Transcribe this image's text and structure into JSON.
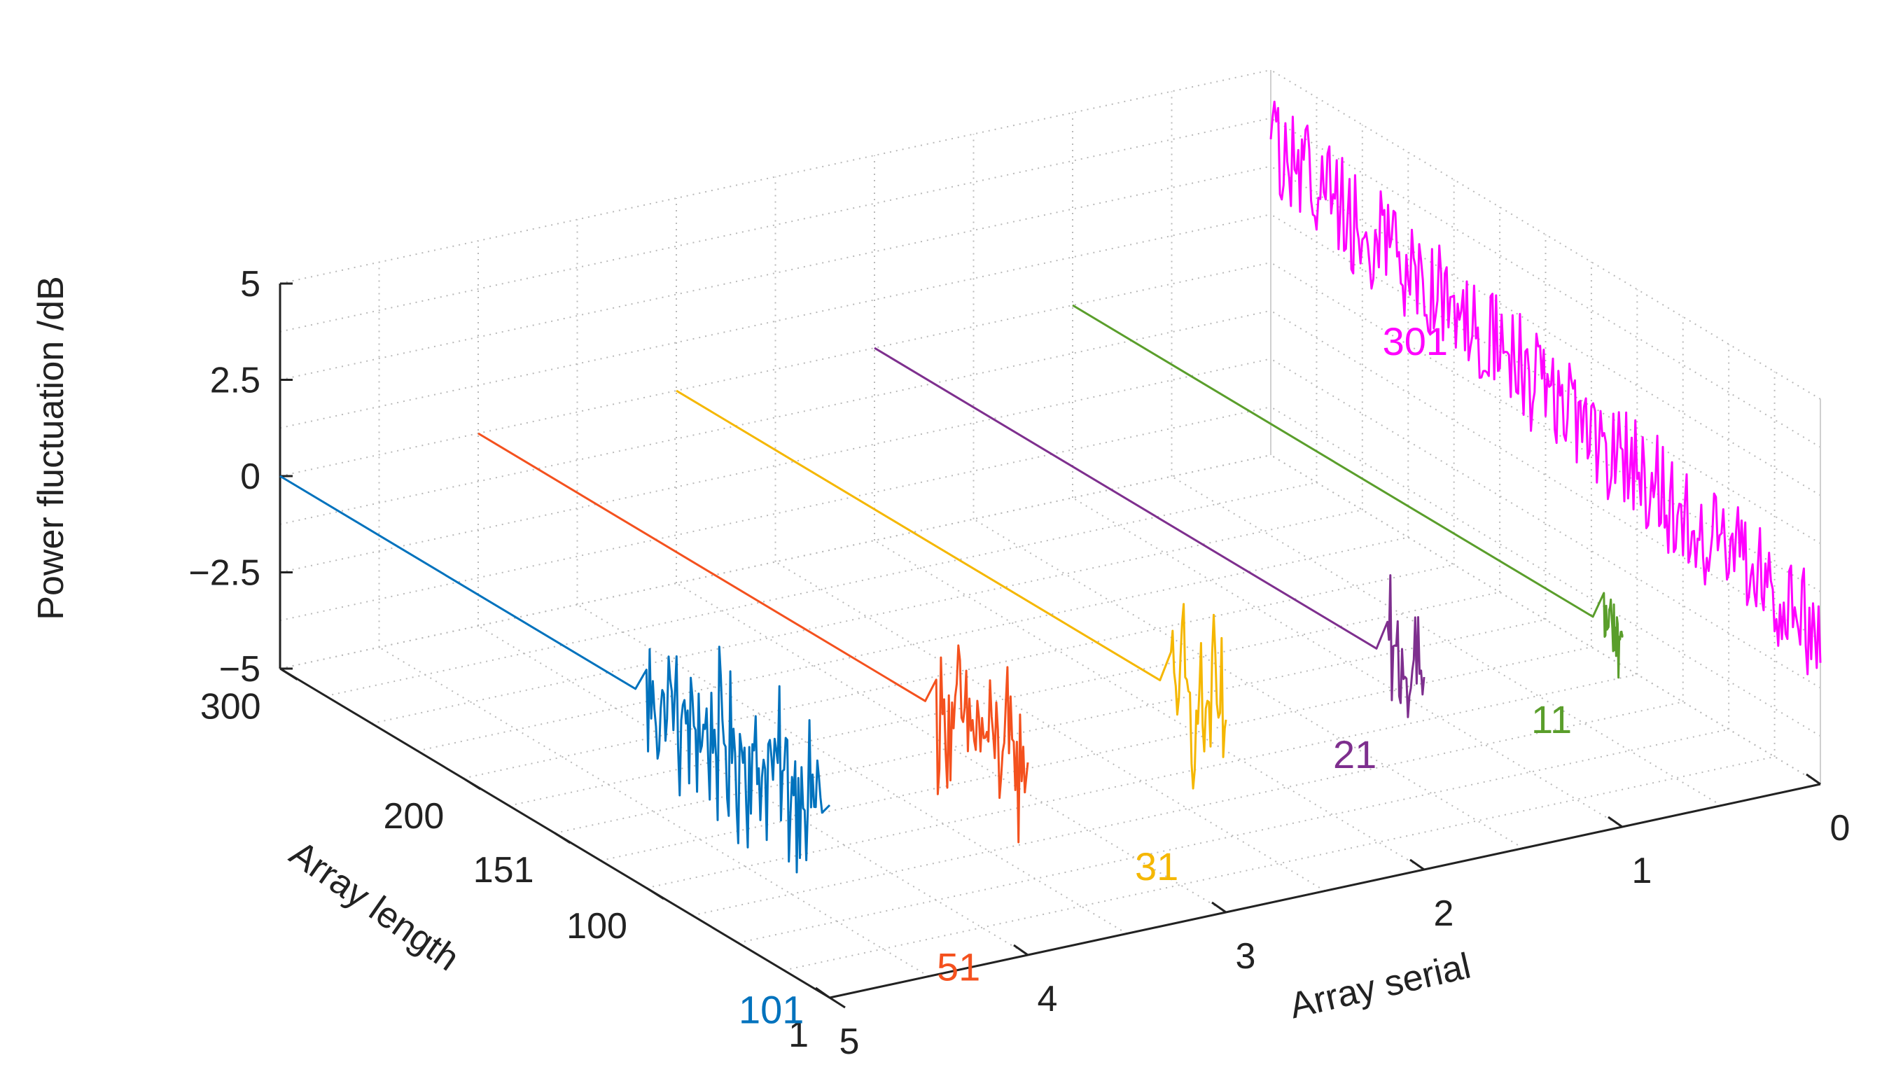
{
  "chart_data": {
    "type": "line",
    "projection": "3d",
    "title": "",
    "zlabel": "Power fluctuation /dB",
    "ylabel": "Array length",
    "xlabel": "Array serial",
    "zlim": [
      -5,
      5
    ],
    "z_ticks": [
      "5",
      "2.5",
      "0",
      "−2.5",
      "−5"
    ],
    "y_ticks": [
      "300",
      "200",
      "151",
      "100",
      "1"
    ],
    "x_ticks": [
      "0",
      "1",
      "2",
      "3",
      "4",
      "5"
    ],
    "grid": "dotted",
    "series": [
      {
        "name": "101",
        "color": "#0072BD",
        "serial": 5.0,
        "length": 101,
        "baseline": 0.0,
        "amplitude": 2.6,
        "trend": 0.0,
        "label_z": -5.3
      },
      {
        "name": "51",
        "color": "#F4511E",
        "serial": 4.0,
        "length": 51,
        "baseline": 0.0,
        "amplitude": 2.4,
        "trend": 0.0,
        "label_z": -5.3
      },
      {
        "name": "31",
        "color": "#F5B700",
        "serial": 3.0,
        "length": 31,
        "baseline": 0.0,
        "amplitude": 2.6,
        "trend": 0.0,
        "label_z": -3.8
      },
      {
        "name": "21",
        "color": "#7E2F8E",
        "serial": 2.0,
        "length": 21,
        "baseline": 0.0,
        "amplitude": 2.2,
        "trend": 0.0,
        "label_z": -2.0
      },
      {
        "name": "11",
        "color": "#5A9E2B",
        "serial": 1.0,
        "length": 11,
        "baseline": 0.0,
        "amplitude": 1.8,
        "trend": 0.0,
        "label_z": -2.2
      },
      {
        "name": "301",
        "color": "#FF00FF",
        "serial": 0.0,
        "length": 301,
        "baseline": 3.0,
        "amplitude": 1.4,
        "trend": -5.8,
        "label_z": -0.3
      }
    ]
  }
}
